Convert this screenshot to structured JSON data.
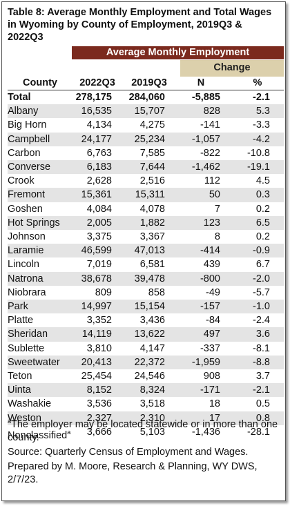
{
  "title": "Table 8: Average Monthly Employment and Total Wages in Wyoming by County of Employment, 2019Q3 & 2022Q3",
  "table": {
    "group_header": "Average Monthly Employment",
    "sub_group_header": "Change",
    "columns": [
      "County",
      "2022Q3",
      "2019Q3",
      "N",
      "%"
    ],
    "rows": [
      [
        "Total",
        "278,175",
        "284,060",
        "-5,885",
        "-2.1"
      ],
      [
        "Albany",
        "16,535",
        "15,707",
        "828",
        "5.3"
      ],
      [
        "Big Horn",
        "4,134",
        "4,275",
        "-141",
        "-3.3"
      ],
      [
        "Campbell",
        "24,177",
        "25,234",
        "-1,057",
        "-4.2"
      ],
      [
        "Carbon",
        "6,763",
        "7,585",
        "-822",
        "-10.8"
      ],
      [
        "Converse",
        "6,183",
        "7,644",
        "-1,462",
        "-19.1"
      ],
      [
        "Crook",
        "2,628",
        "2,516",
        "112",
        "4.5"
      ],
      [
        "Fremont",
        "15,361",
        "15,311",
        "50",
        "0.3"
      ],
      [
        "Goshen",
        "4,084",
        "4,078",
        "7",
        "0.2"
      ],
      [
        "Hot Springs",
        "2,005",
        "1,882",
        "123",
        "6.5"
      ],
      [
        "Johnson",
        "3,375",
        "3,367",
        "8",
        "0.2"
      ],
      [
        "Laramie",
        "46,599",
        "47,013",
        "-414",
        "-0.9"
      ],
      [
        "Lincoln",
        "7,019",
        "6,581",
        "439",
        "6.7"
      ],
      [
        "Natrona",
        "38,678",
        "39,478",
        "-800",
        "-2.0"
      ],
      [
        "Niobrara",
        "809",
        "858",
        "-49",
        "-5.7"
      ],
      [
        "Park",
        "14,997",
        "15,154",
        "-157",
        "-1.0"
      ],
      [
        "Platte",
        "3,352",
        "3,436",
        "-84",
        "-2.4"
      ],
      [
        "Sheridan",
        "14,119",
        "13,622",
        "497",
        "3.6"
      ],
      [
        "Sublette",
        "3,810",
        "4,147",
        "-337",
        "-8.1"
      ],
      [
        "Sweetwater",
        "20,413",
        "22,372",
        "-1,959",
        "-8.8"
      ],
      [
        "Teton",
        "25,454",
        "24,546",
        "908",
        "3.7"
      ],
      [
        "Uinta",
        "8,152",
        "8,324",
        "-171",
        "-2.1"
      ],
      [
        "Washakie",
        "3,536",
        "3,518",
        "18",
        "0.5"
      ],
      [
        "Weston",
        "2,327",
        "2,310",
        "17",
        "0.8"
      ],
      [
        "Nonclassified",
        "3,666",
        "5,103",
        "-1,436",
        "-28.1"
      ]
    ],
    "last_row_marker": "a"
  },
  "footnote": {
    "marker": "a",
    "text": "The employer may be located statewide or in more than one county."
  },
  "source": "Source: Quarterly Census of Employment and Wages.",
  "prepared_by": "Prepared by M. Moore, Research & Planning, WY DWS, 2/7/23."
}
